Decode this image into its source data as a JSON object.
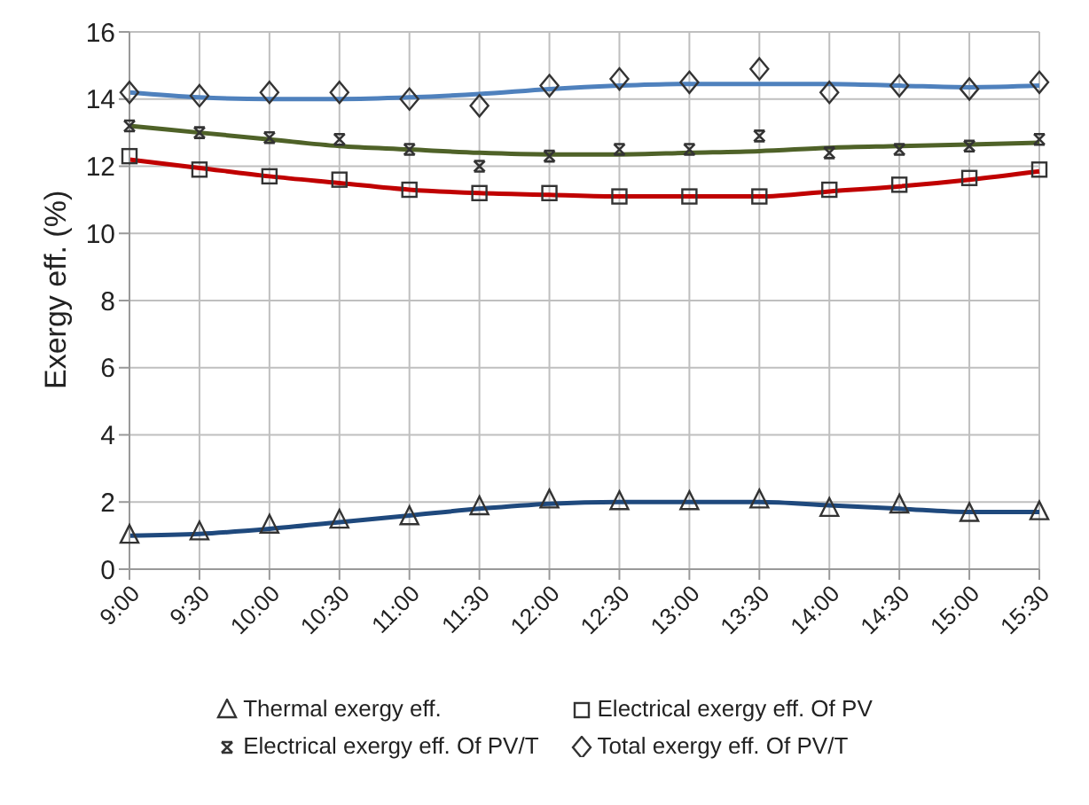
{
  "chart_data": {
    "type": "scatter",
    "ylabel": "Exergy eff. (%)",
    "categories": [
      "9:00",
      "9:30",
      "10:00",
      "10:30",
      "11:00",
      "11:30",
      "12:00",
      "12:30",
      "13:00",
      "13:30",
      "14:00",
      "14:30",
      "15:00",
      "15:30"
    ],
    "ylim": [
      0,
      16
    ],
    "yticks": [
      0,
      2,
      4,
      6,
      8,
      10,
      12,
      14,
      16
    ],
    "grid": true,
    "legend": "bottom",
    "series": [
      {
        "name": "Thermal exergy eff.",
        "marker": "triangle",
        "color": "#333333",
        "values": [
          1.0,
          1.1,
          1.3,
          1.45,
          1.55,
          1.85,
          2.05,
          2.0,
          2.0,
          2.05,
          1.8,
          1.9,
          1.65,
          1.7
        ]
      },
      {
        "name": "Electrical exergy eff. Of PV",
        "marker": "square",
        "color": "#333333",
        "values": [
          12.3,
          11.9,
          11.7,
          11.6,
          11.3,
          11.2,
          11.2,
          11.1,
          11.1,
          11.1,
          11.3,
          11.45,
          11.65,
          11.9
        ]
      },
      {
        "name": "Electrical exergy eff. Of PV/T",
        "marker": "cross",
        "color": "#333333",
        "values": [
          13.2,
          13.0,
          12.85,
          12.8,
          12.5,
          12.0,
          12.3,
          12.5,
          12.5,
          12.9,
          12.4,
          12.5,
          12.6,
          12.8
        ]
      },
      {
        "name": "Total exergy eff. Of PV/T",
        "marker": "diamond",
        "color": "#333333",
        "values": [
          14.2,
          14.1,
          14.2,
          14.2,
          14.0,
          13.8,
          14.4,
          14.6,
          14.5,
          14.9,
          14.2,
          14.4,
          14.3,
          14.5
        ]
      },
      {
        "type": "line",
        "marker": "none",
        "color": "#1f497d",
        "values": [
          1.0,
          1.05,
          1.2,
          1.4,
          1.6,
          1.8,
          1.95,
          2.0,
          2.0,
          2.0,
          1.9,
          1.8,
          1.7,
          1.7
        ]
      },
      {
        "type": "line",
        "marker": "none",
        "color": "#c00000",
        "values": [
          12.2,
          11.95,
          11.7,
          11.5,
          11.3,
          11.2,
          11.15,
          11.1,
          11.1,
          11.1,
          11.25,
          11.4,
          11.6,
          11.85
        ]
      },
      {
        "type": "line",
        "marker": "none",
        "color": "#4f6228",
        "values": [
          13.2,
          13.0,
          12.8,
          12.6,
          12.5,
          12.4,
          12.35,
          12.35,
          12.4,
          12.45,
          12.55,
          12.6,
          12.65,
          12.7
        ]
      },
      {
        "type": "line",
        "marker": "none",
        "color": "#4f81bd",
        "values": [
          14.2,
          14.05,
          14.0,
          14.0,
          14.05,
          14.15,
          14.3,
          14.4,
          14.45,
          14.45,
          14.45,
          14.4,
          14.35,
          14.4
        ]
      }
    ]
  }
}
